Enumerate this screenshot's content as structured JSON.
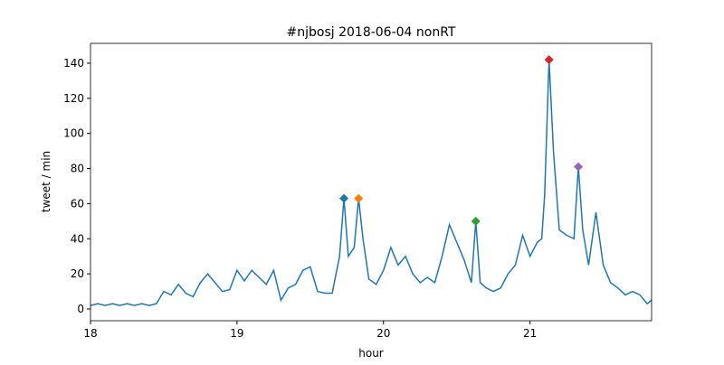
{
  "chart_data": {
    "type": "line",
    "title": "#njbosj 2018-06-04 nonRT",
    "xlabel": "hour",
    "ylabel": "tweet / min",
    "color": "#1f77b4",
    "x": [
      18.0,
      18.05,
      18.1,
      18.15,
      18.2,
      18.25,
      18.3,
      18.35,
      18.4,
      18.45,
      18.5,
      18.55,
      18.6,
      18.65,
      18.7,
      18.75,
      18.8,
      18.85,
      18.9,
      18.95,
      19.0,
      19.05,
      19.1,
      19.15,
      19.2,
      19.25,
      19.3,
      19.35,
      19.4,
      19.45,
      19.5,
      19.55,
      19.6,
      19.65,
      19.7,
      19.73,
      19.76,
      19.8,
      19.83,
      19.86,
      19.9,
      19.95,
      20.0,
      20.05,
      20.1,
      20.15,
      20.2,
      20.25,
      20.3,
      20.35,
      20.4,
      20.45,
      20.5,
      20.55,
      20.6,
      20.63,
      20.66,
      20.7,
      20.75,
      20.8,
      20.85,
      20.9,
      20.95,
      21.0,
      21.05,
      21.08,
      21.1,
      21.13,
      21.16,
      21.2,
      21.25,
      21.3,
      21.33,
      21.36,
      21.4,
      21.45,
      21.5,
      21.55,
      21.6,
      21.65,
      21.7,
      21.75,
      21.8,
      21.83
    ],
    "values": [
      2,
      3,
      2,
      3,
      2,
      3,
      2,
      3,
      2,
      3,
      10,
      8,
      14,
      9,
      7,
      15,
      20,
      15,
      10,
      11,
      22,
      16,
      22,
      18,
      14,
      22,
      5,
      12,
      14,
      22,
      24,
      10,
      9,
      9,
      30,
      63,
      30,
      35,
      63,
      40,
      17,
      14,
      22,
      35,
      25,
      30,
      20,
      15,
      18,
      15,
      30,
      48,
      38,
      28,
      15,
      50,
      15,
      12,
      10,
      12,
      20,
      25,
      42,
      30,
      38,
      40,
      65,
      142,
      90,
      45,
      42,
      40,
      81,
      45,
      25,
      55,
      25,
      15,
      12,
      8,
      10,
      8,
      3,
      5
    ],
    "peaks": {
      "x": [
        19.73,
        19.83,
        20.63,
        21.13,
        21.33
      ],
      "values": [
        63,
        63,
        50,
        142,
        81
      ],
      "colors": [
        "#1f77b4",
        "#ff7f0e",
        "#2ca02c",
        "#d62728",
        "#9467bd"
      ]
    },
    "xlim": [
      18,
      21.83
    ],
    "xticks": [
      18,
      19,
      20,
      21
    ],
    "ylim": [
      -6.7,
      151.3
    ],
    "yticks": [
      0,
      20,
      40,
      60,
      80,
      100,
      120,
      140
    ]
  }
}
